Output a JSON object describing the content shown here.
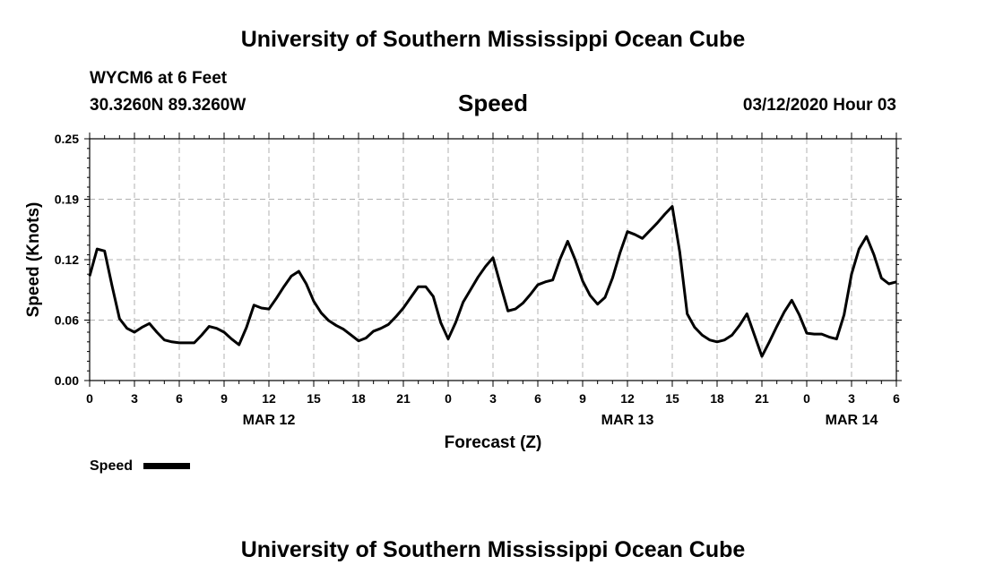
{
  "header": {
    "title_top": "University of Southern Mississippi Ocean Cube",
    "station": "WYCM6 at 6 Feet",
    "position": "30.3260N 89.3260W",
    "parameter": "Speed",
    "datetime": "03/12/2020 Hour 03",
    "title_bottom": "University of Southern Mississippi Ocean Cube"
  },
  "legend": {
    "label": "Speed",
    "color": "#000000"
  },
  "chart_data": {
    "type": "line",
    "xlabel": "Forecast (Z)",
    "ylabel": "Speed (Knots)",
    "xlim": [
      0,
      54
    ],
    "ylim": [
      0,
      0.25
    ],
    "yticks": [
      "0.00",
      "0.06",
      "0.12",
      "0.19",
      "0.25"
    ],
    "xticks": [
      "0",
      "3",
      "6",
      "9",
      "12",
      "15",
      "18",
      "21",
      "0",
      "3",
      "6",
      "9",
      "12",
      "15",
      "18",
      "21",
      "0",
      "3",
      "6"
    ],
    "date_labels": [
      {
        "label": "MAR 12",
        "at": 12
      },
      {
        "label": "MAR 13",
        "at": 36
      },
      {
        "label": "MAR 14",
        "at": 51
      }
    ],
    "grid": true,
    "series": [
      {
        "name": "Speed",
        "color": "#000000",
        "x": [
          0,
          0.5,
          1,
          1.5,
          2,
          2.5,
          3,
          3.5,
          4,
          4.5,
          5,
          5.5,
          6,
          6.5,
          7,
          7.5,
          8,
          8.5,
          9,
          9.5,
          10,
          10.5,
          11,
          11.5,
          12,
          12.5,
          13,
          13.5,
          14,
          14.5,
          15,
          15.5,
          16,
          16.5,
          17,
          17.5,
          18,
          18.5,
          19,
          19.5,
          20,
          20.5,
          21,
          21.5,
          22,
          22.5,
          23,
          23.5,
          24,
          24.5,
          25,
          25.5,
          26,
          26.5,
          27,
          27.5,
          28,
          28.5,
          29,
          29.5,
          30,
          30.5,
          31,
          31.5,
          32,
          32.5,
          33,
          33.5,
          34,
          34.5,
          35,
          35.5,
          36,
          36.5,
          37,
          37.5,
          38,
          38.5,
          39,
          39.5,
          40,
          40.5,
          41,
          41.5,
          42,
          42.5,
          43,
          43.5,
          44,
          44.5,
          45,
          45.5,
          46,
          46.5,
          47,
          47.5,
          48,
          48.5,
          49,
          49.5,
          50,
          50.5,
          51,
          51.5,
          52,
          52.5,
          53,
          53.5,
          54
        ],
        "values": [
          0.108,
          0.136,
          0.134,
          0.098,
          0.064,
          0.054,
          0.05,
          0.055,
          0.059,
          0.05,
          0.042,
          0.04,
          0.039,
          0.039,
          0.039,
          0.047,
          0.056,
          0.054,
          0.05,
          0.043,
          0.037,
          0.055,
          0.078,
          0.075,
          0.074,
          0.085,
          0.097,
          0.108,
          0.113,
          0.1,
          0.082,
          0.07,
          0.062,
          0.057,
          0.053,
          0.047,
          0.041,
          0.044,
          0.051,
          0.054,
          0.058,
          0.066,
          0.075,
          0.086,
          0.097,
          0.097,
          0.087,
          0.06,
          0.043,
          0.06,
          0.081,
          0.094,
          0.107,
          0.118,
          0.127,
          0.099,
          0.072,
          0.074,
          0.08,
          0.089,
          0.099,
          0.102,
          0.104,
          0.126,
          0.144,
          0.125,
          0.103,
          0.088,
          0.079,
          0.086,
          0.106,
          0.132,
          0.154,
          0.151,
          0.147,
          0.155,
          0.163,
          0.172,
          0.18,
          0.133,
          0.069,
          0.055,
          0.047,
          0.042,
          0.04,
          0.042,
          0.047,
          0.057,
          0.069,
          0.047,
          0.025,
          0.04,
          0.056,
          0.071,
          0.083,
          0.068,
          0.049,
          0.048,
          0.048,
          0.045,
          0.043,
          0.068,
          0.11,
          0.136,
          0.149,
          0.13,
          0.106,
          0.1,
          0.102
        ]
      }
    ]
  }
}
